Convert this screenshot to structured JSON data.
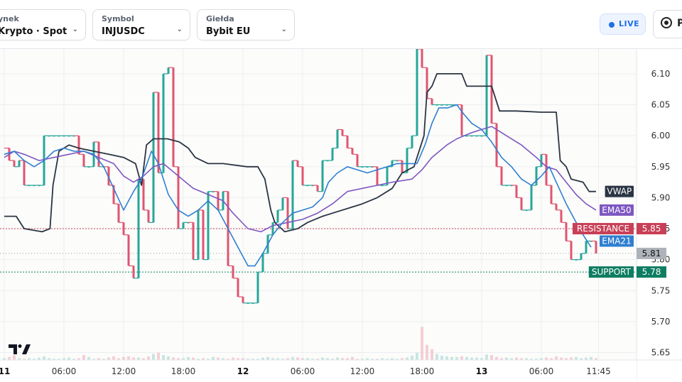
{
  "toolbar": {
    "market": {
      "label": "ynek",
      "value": "Krypto · Spot"
    },
    "symbol": {
      "label": "Symbol",
      "value": "INJUSDC"
    },
    "exchange": {
      "label": "Giełda",
      "value": "Bybit EU"
    },
    "live": "LIVE",
    "cut_button": "P"
  },
  "colors": {
    "up": "#26a69a",
    "down": "#e05470",
    "vwap": "#2a3443",
    "ema50": "#7e57c2",
    "ema21": "#2f7fd0",
    "resistance": "#c84057",
    "support": "#0e7d62",
    "current": "#9aa0aa"
  },
  "chart_data": {
    "type": "line",
    "ylim": [
      5.638,
      6.14
    ],
    "y_ticks": [
      5.65,
      5.7,
      5.75,
      5.8,
      5.85,
      5.9,
      5.95,
      6.0,
      6.05,
      6.1
    ],
    "y_tick_labels": [
      "5.65",
      "5.70",
      "5.75",
      "5.80",
      "5.85",
      "5.90",
      "5.95",
      "6.00",
      "6.05",
      "6.10"
    ],
    "x_ticks": [
      {
        "label": "11",
        "x": 0,
        "bold": true
      },
      {
        "label": "06:00",
        "x": 6
      },
      {
        "label": "12:00",
        "x": 12
      },
      {
        "label": "18:00",
        "x": 18
      },
      {
        "label": "12",
        "x": 24,
        "bold": true
      },
      {
        "label": "06:00",
        "x": 30
      },
      {
        "label": "12:00",
        "x": 36
      },
      {
        "label": "18:00",
        "x": 42
      },
      {
        "label": "13",
        "x": 48,
        "bold": true
      },
      {
        "label": "06:00",
        "x": 54
      },
      {
        "label": "11:45",
        "x": 59.75
      }
    ],
    "candle_step_hours": 0.5,
    "closes": [
      5.98,
      5.96,
      5.95,
      5.96,
      5.92,
      5.92,
      5.92,
      5.92,
      6.0,
      6.0,
      6.0,
      6.0,
      6.0,
      6.0,
      6.0,
      5.97,
      5.95,
      5.95,
      5.99,
      5.95,
      5.95,
      5.92,
      5.89,
      5.86,
      5.84,
      5.79,
      5.77,
      5.93,
      5.88,
      5.86,
      6.07,
      5.94,
      6.1,
      6.11,
      5.95,
      5.85,
      5.86,
      5.86,
      5.8,
      5.88,
      5.8,
      5.91,
      5.91,
      5.88,
      5.91,
      5.79,
      5.77,
      5.74,
      5.73,
      5.73,
      5.73,
      5.78,
      5.81,
      5.84,
      5.86,
      5.88,
      5.9,
      5.85,
      5.96,
      5.95,
      5.92,
      5.92,
      5.92,
      5.91,
      5.96,
      5.96,
      5.98,
      6.01,
      6.0,
      5.98,
      5.97,
      5.95,
      5.95,
      5.95,
      5.95,
      5.92,
      5.92,
      5.95,
      5.96,
      5.96,
      5.94,
      5.98,
      6.0,
      6.14,
      6.11,
      6.06,
      6.05,
      6.05,
      6.05,
      6.05,
      6.05,
      6.05,
      6.0,
      6.0,
      6.0,
      6.0,
      6.0,
      6.13,
      6.02,
      5.95,
      5.92,
      5.92,
      5.92,
      5.9,
      5.88,
      5.88,
      5.92,
      5.95,
      5.97,
      5.92,
      5.89,
      5.88,
      5.86,
      5.83,
      5.8,
      5.8,
      5.81,
      5.83,
      5.83,
      5.81
    ],
    "volumes": [
      3,
      5,
      8,
      3,
      2,
      3,
      2,
      4,
      6,
      3,
      2,
      2,
      3,
      4,
      2,
      3,
      8,
      5,
      2,
      3,
      2,
      4,
      6,
      3,
      5,
      6,
      4,
      4,
      3,
      6,
      10,
      12,
      8,
      6,
      4,
      3,
      3,
      5,
      4,
      2,
      3,
      2,
      5,
      4,
      3,
      2,
      4,
      3,
      3,
      2,
      2,
      2,
      4,
      5,
      3,
      3,
      2,
      3,
      5,
      4,
      3,
      3,
      2,
      2,
      4,
      3,
      2,
      4,
      3,
      3,
      5,
      2,
      2,
      3,
      2,
      2,
      3,
      2,
      3,
      2,
      3,
      4,
      7,
      12,
      55,
      25,
      18,
      10,
      7,
      6,
      5,
      5,
      6,
      5,
      4,
      4,
      3,
      9,
      8,
      5,
      3,
      4,
      3,
      4,
      3,
      3,
      2,
      2,
      3,
      4,
      3,
      6,
      4,
      3,
      4,
      5,
      3,
      4,
      5,
      3
    ],
    "series": [
      {
        "name": "VWAP",
        "points": [
          [
            0,
            5.87
          ],
          [
            1.2,
            5.87
          ],
          [
            2,
            5.85
          ],
          [
            3.8,
            5.845
          ],
          [
            4.6,
            5.85
          ],
          [
            4.9,
            5.92
          ],
          [
            5.5,
            5.975
          ],
          [
            6.5,
            5.985
          ],
          [
            7.5,
            5.98
          ],
          [
            9,
            5.975
          ],
          [
            10.5,
            5.97
          ],
          [
            12,
            5.965
          ],
          [
            13.2,
            5.955
          ],
          [
            13.8,
            5.92
          ],
          [
            14.3,
            5.985
          ],
          [
            15,
            5.995
          ],
          [
            16.4,
            5.995
          ],
          [
            17.6,
            5.99
          ],
          [
            18.5,
            5.98
          ],
          [
            19.2,
            5.965
          ],
          [
            20.5,
            5.955
          ],
          [
            22,
            5.955
          ],
          [
            24.4,
            5.95
          ],
          [
            25.5,
            5.95
          ],
          [
            26.2,
            5.93
          ],
          [
            26.8,
            5.88
          ],
          [
            27.2,
            5.86
          ],
          [
            28.2,
            5.845
          ],
          [
            29.5,
            5.85
          ],
          [
            30.5,
            5.86
          ],
          [
            32,
            5.87
          ],
          [
            33,
            5.875
          ],
          [
            35,
            5.885
          ],
          [
            36,
            5.89
          ],
          [
            37.5,
            5.9
          ],
          [
            39,
            5.915
          ],
          [
            40,
            5.94
          ],
          [
            41.2,
            5.95
          ],
          [
            42.2,
            6.0
          ],
          [
            42.5,
            6.07
          ],
          [
            43,
            6.08
          ],
          [
            43.5,
            6.1
          ],
          [
            45,
            6.1
          ],
          [
            46,
            6.1
          ],
          [
            46.5,
            6.08
          ],
          [
            49,
            6.08
          ],
          [
            49.8,
            6.04
          ],
          [
            51.5,
            6.04
          ],
          [
            54,
            6.038
          ],
          [
            55.5,
            6.038
          ],
          [
            55.9,
            5.96
          ],
          [
            56.5,
            5.95
          ],
          [
            57,
            5.93
          ],
          [
            58.2,
            5.925
          ],
          [
            58.8,
            5.91
          ],
          [
            59.5,
            5.91
          ]
        ]
      },
      {
        "name": "EMA50",
        "points": [
          [
            0,
            5.965
          ],
          [
            1,
            5.975
          ],
          [
            2,
            5.97
          ],
          [
            3.5,
            5.96
          ],
          [
            5,
            5.965
          ],
          [
            6.5,
            5.97
          ],
          [
            8,
            5.975
          ],
          [
            9.5,
            5.965
          ],
          [
            11,
            5.955
          ],
          [
            12,
            5.935
          ],
          [
            13,
            5.925
          ],
          [
            14,
            5.935
          ],
          [
            15,
            5.95
          ],
          [
            16,
            5.955
          ],
          [
            17.5,
            5.935
          ],
          [
            19,
            5.915
          ],
          [
            20.5,
            5.905
          ],
          [
            22,
            5.895
          ],
          [
            23,
            5.875
          ],
          [
            24.5,
            5.85
          ],
          [
            25.8,
            5.845
          ],
          [
            27,
            5.855
          ],
          [
            28.5,
            5.86
          ],
          [
            30,
            5.865
          ],
          [
            31.5,
            5.875
          ],
          [
            33,
            5.89
          ],
          [
            34.5,
            5.91
          ],
          [
            36,
            5.915
          ],
          [
            37.5,
            5.92
          ],
          [
            39,
            5.925
          ],
          [
            41,
            5.93
          ],
          [
            42,
            5.945
          ],
          [
            43,
            5.965
          ],
          [
            44.5,
            5.985
          ],
          [
            45.5,
            5.995
          ],
          [
            47,
            6.005
          ],
          [
            48,
            6.01
          ],
          [
            49,
            6.015
          ],
          [
            50.5,
            6.0
          ],
          [
            52,
            5.985
          ],
          [
            53.5,
            5.965
          ],
          [
            54.5,
            5.95
          ],
          [
            55.5,
            5.945
          ],
          [
            56.5,
            5.925
          ],
          [
            57.5,
            5.905
          ],
          [
            58.5,
            5.89
          ],
          [
            59.5,
            5.88
          ]
        ]
      },
      {
        "name": "EMA21",
        "points": [
          [
            0,
            5.97
          ],
          [
            1,
            5.975
          ],
          [
            2,
            5.96
          ],
          [
            3,
            5.95
          ],
          [
            4,
            5.96
          ],
          [
            5,
            5.975
          ],
          [
            6,
            5.98
          ],
          [
            7,
            5.975
          ],
          [
            8,
            5.975
          ],
          [
            9,
            5.97
          ],
          [
            10,
            5.95
          ],
          [
            11,
            5.915
          ],
          [
            12,
            5.88
          ],
          [
            13,
            5.91
          ],
          [
            13.8,
            5.93
          ],
          [
            14.8,
            5.975
          ],
          [
            15.5,
            5.955
          ],
          [
            16.5,
            5.905
          ],
          [
            17.5,
            5.88
          ],
          [
            18.5,
            5.87
          ],
          [
            19.5,
            5.88
          ],
          [
            20.5,
            5.895
          ],
          [
            21.5,
            5.88
          ],
          [
            22.5,
            5.85
          ],
          [
            23.5,
            5.82
          ],
          [
            24.5,
            5.79
          ],
          [
            25.2,
            5.79
          ],
          [
            26,
            5.81
          ],
          [
            27,
            5.84
          ],
          [
            28,
            5.86
          ],
          [
            29,
            5.875
          ],
          [
            30,
            5.88
          ],
          [
            31,
            5.885
          ],
          [
            32,
            5.9
          ],
          [
            32.6,
            5.925
          ],
          [
            33.5,
            5.94
          ],
          [
            34.5,
            5.95
          ],
          [
            35.5,
            5.945
          ],
          [
            36.5,
            5.94
          ],
          [
            37.5,
            5.945
          ],
          [
            38.5,
            5.95
          ],
          [
            39.5,
            5.955
          ],
          [
            40.5,
            5.955
          ],
          [
            41.5,
            5.955
          ],
          [
            42.3,
            5.985
          ],
          [
            43,
            6.02
          ],
          [
            43.7,
            6.045
          ],
          [
            44.6,
            6.045
          ],
          [
            45.5,
            6.05
          ],
          [
            46.2,
            6.035
          ],
          [
            47,
            6.02
          ],
          [
            48,
            6.01
          ],
          [
            49,
            5.99
          ],
          [
            50,
            5.965
          ],
          [
            51,
            5.95
          ],
          [
            52,
            5.93
          ],
          [
            53,
            5.92
          ],
          [
            54,
            5.935
          ],
          [
            54.8,
            5.95
          ],
          [
            55.5,
            5.925
          ],
          [
            56.5,
            5.89
          ],
          [
            57.5,
            5.86
          ],
          [
            58.2,
            5.84
          ],
          [
            59,
            5.82
          ]
        ]
      }
    ],
    "line_labels": [
      {
        "name": "VWAP",
        "value": 5.91
      },
      {
        "name": "EMA50",
        "value": 5.88
      },
      {
        "name": "EMA21",
        "value": 5.83
      }
    ],
    "levels": [
      {
        "name": "RESISTANCE",
        "value": 5.85,
        "label": "5.85"
      },
      {
        "name": "SUPPORT",
        "value": 5.78,
        "label": "5.78"
      }
    ],
    "current_price": {
      "value": 5.81,
      "label": "5.81"
    },
    "watermark": "17"
  }
}
